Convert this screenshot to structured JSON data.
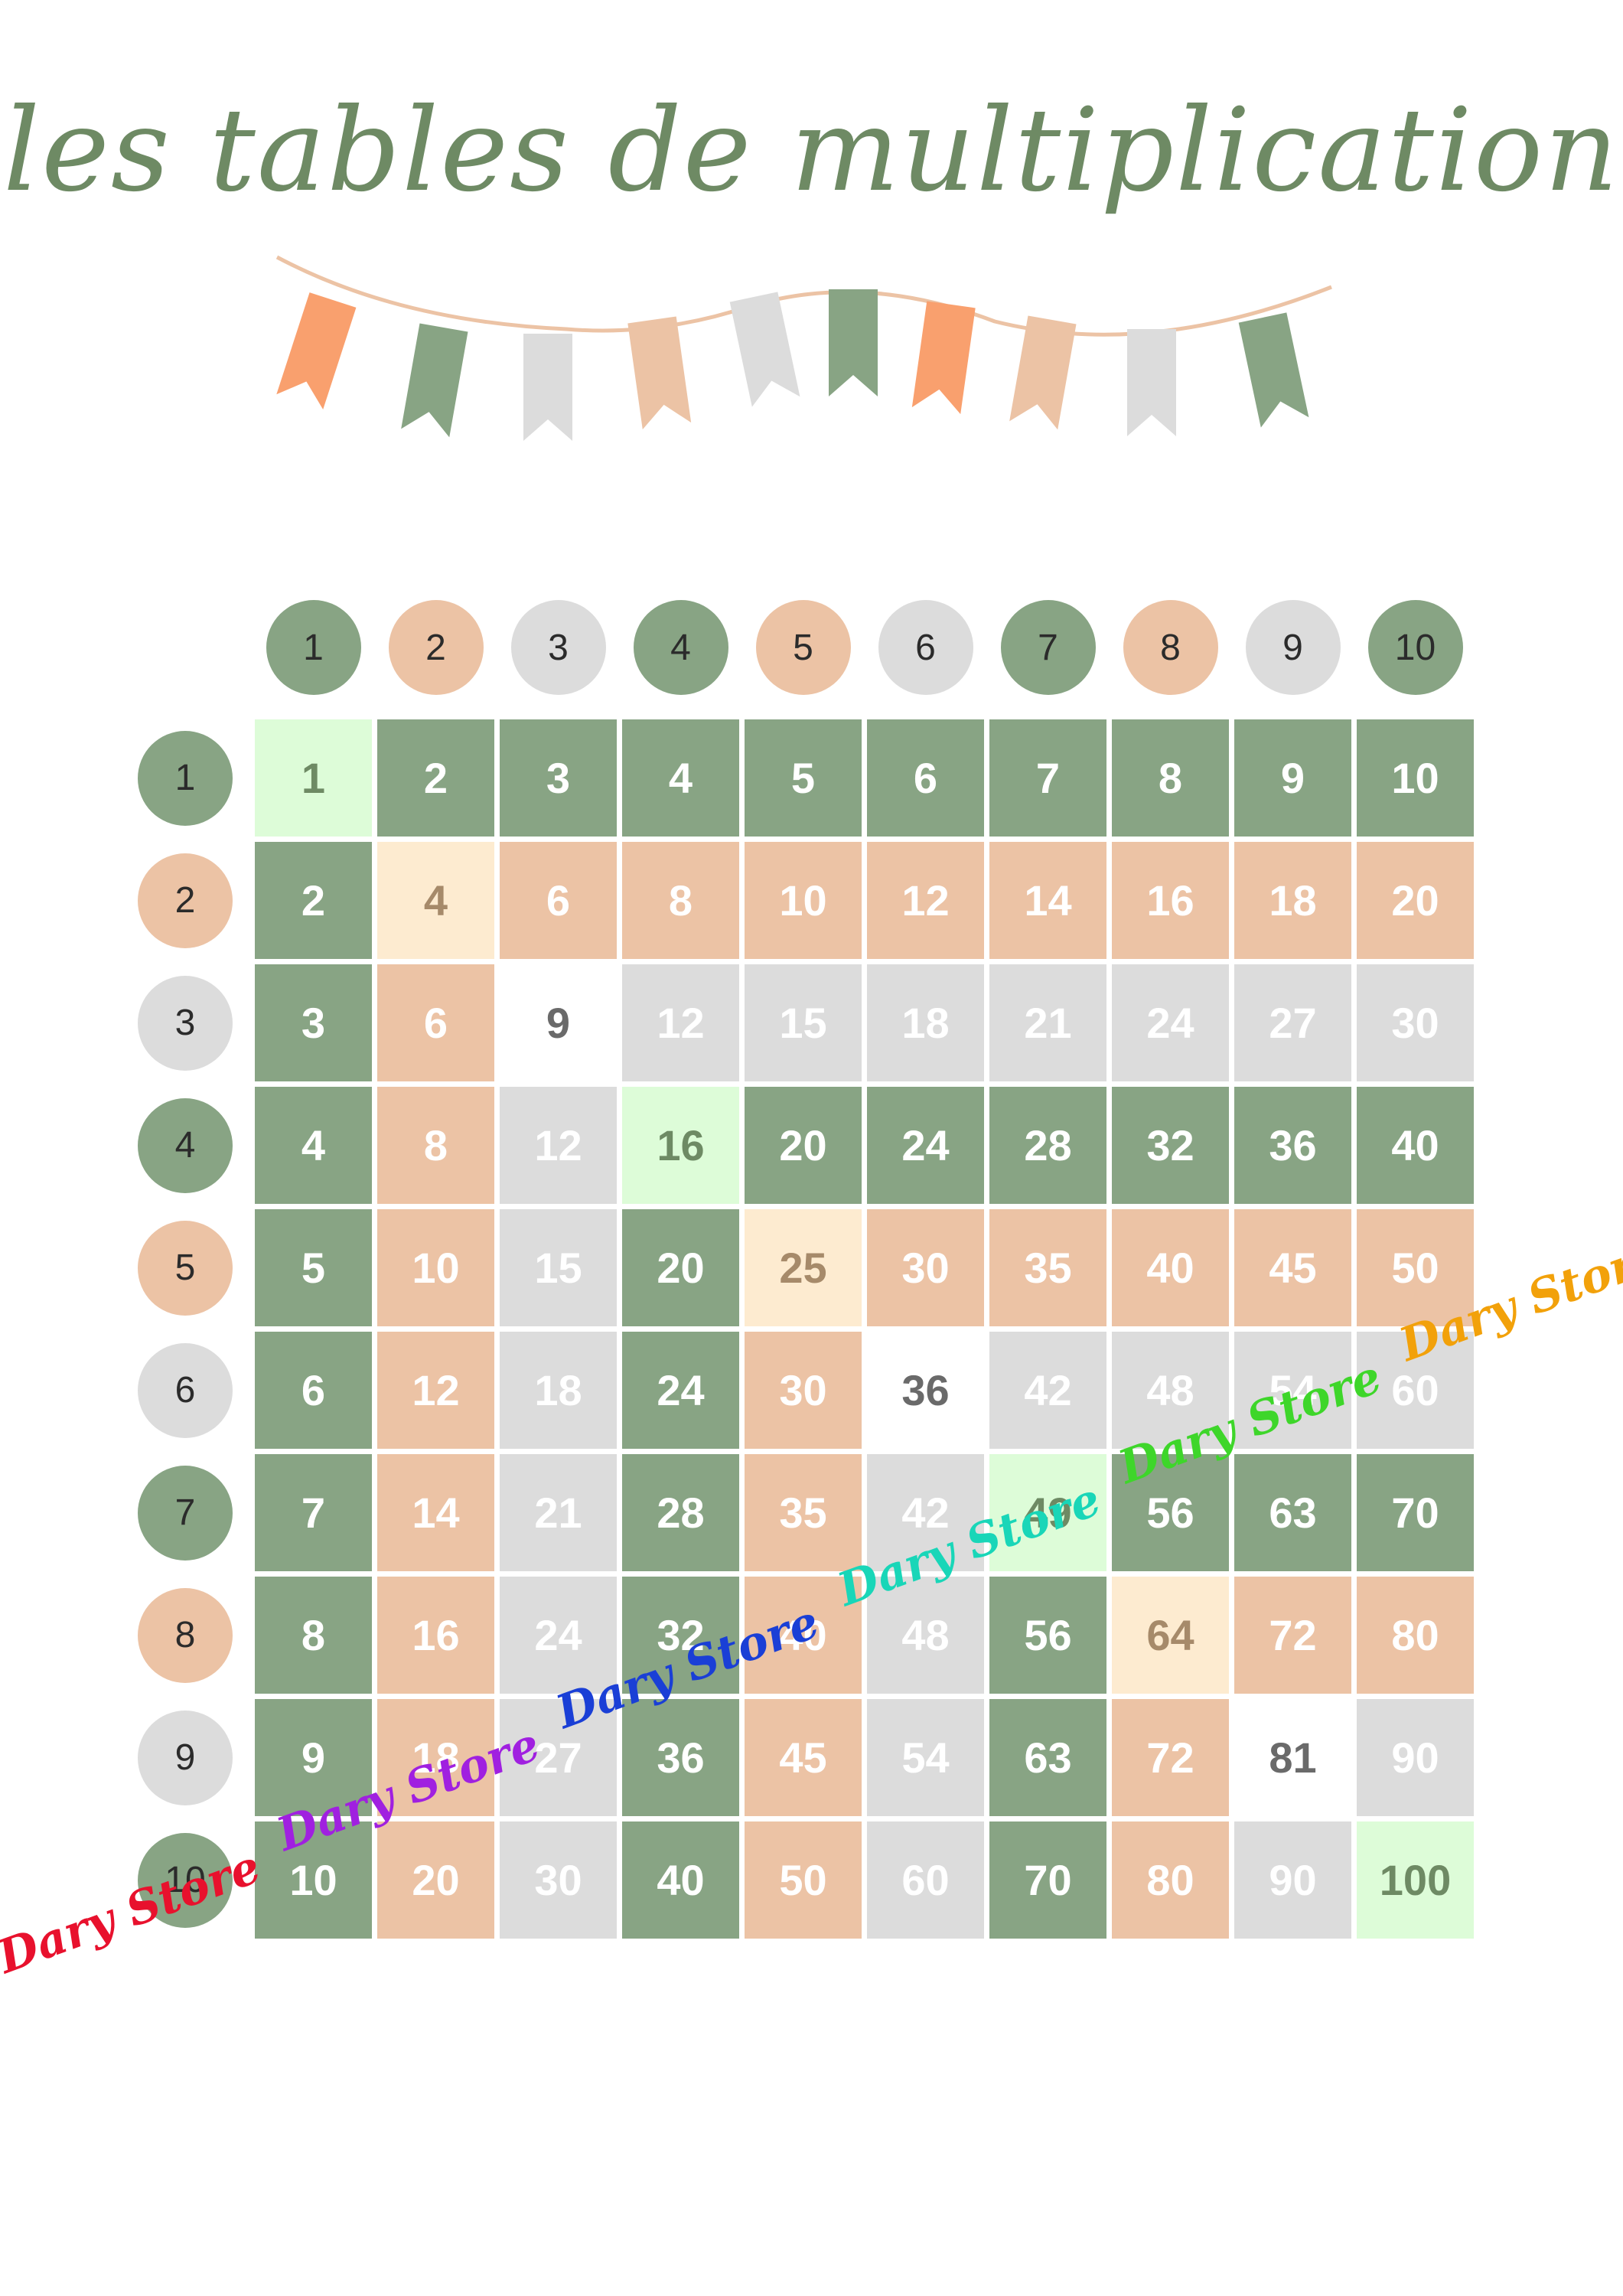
{
  "title": "les tables de multiplication",
  "colors": {
    "green": "#88a484",
    "peach": "#ecc3a5",
    "gray": "#dcdcdc",
    "diag_light_green": "#ddfcd8",
    "diag_cream": "#fdebd0",
    "diag_white": "#ffffff",
    "pennant_orange": "#f9a06e",
    "pennant_green": "#88a484",
    "pennant_gray": "#dcdcdc",
    "pennant_peach": "#ecc3a5"
  },
  "column_headers": [
    "1",
    "2",
    "3",
    "4",
    "5",
    "6",
    "7",
    "8",
    "9",
    "10"
  ],
  "row_headers": [
    "1",
    "2",
    "3",
    "4",
    "5",
    "6",
    "7",
    "8",
    "9",
    "10"
  ],
  "grid": [
    [
      "1",
      "2",
      "3",
      "4",
      "5",
      "6",
      "7",
      "8",
      "9",
      "10"
    ],
    [
      "2",
      "4",
      "6",
      "8",
      "10",
      "12",
      "14",
      "16",
      "18",
      "20"
    ],
    [
      "3",
      "6",
      "9",
      "12",
      "15",
      "18",
      "21",
      "24",
      "27",
      "30"
    ],
    [
      "4",
      "8",
      "12",
      "16",
      "20",
      "24",
      "28",
      "32",
      "36",
      "40"
    ],
    [
      "5",
      "10",
      "15",
      "20",
      "25",
      "30",
      "35",
      "40",
      "45",
      "50"
    ],
    [
      "6",
      "12",
      "18",
      "24",
      "30",
      "36",
      "42",
      "48",
      "54",
      "60"
    ],
    [
      "7",
      "14",
      "21",
      "28",
      "35",
      "42",
      "49",
      "56",
      "63",
      "70"
    ],
    [
      "8",
      "16",
      "24",
      "32",
      "40",
      "48",
      "56",
      "64",
      "72",
      "80"
    ],
    [
      "9",
      "18",
      "27",
      "36",
      "45",
      "54",
      "63",
      "72",
      "81",
      "90"
    ],
    [
      "10",
      "20",
      "30",
      "40",
      "50",
      "60",
      "70",
      "80",
      "90",
      "100"
    ]
  ],
  "watermarks": [
    {
      "text": "Dary Store",
      "color": "#e8112d"
    },
    {
      "text": "Dary Store",
      "color": "#a020e0"
    },
    {
      "text": "Dary Store",
      "color": "#1a3fd6"
    },
    {
      "text": "Dary Store",
      "color": "#19d6b8"
    },
    {
      "text": "Dary Store",
      "color": "#3ed62a"
    },
    {
      "text": "Dary Store",
      "color": "#f2a10a"
    }
  ]
}
